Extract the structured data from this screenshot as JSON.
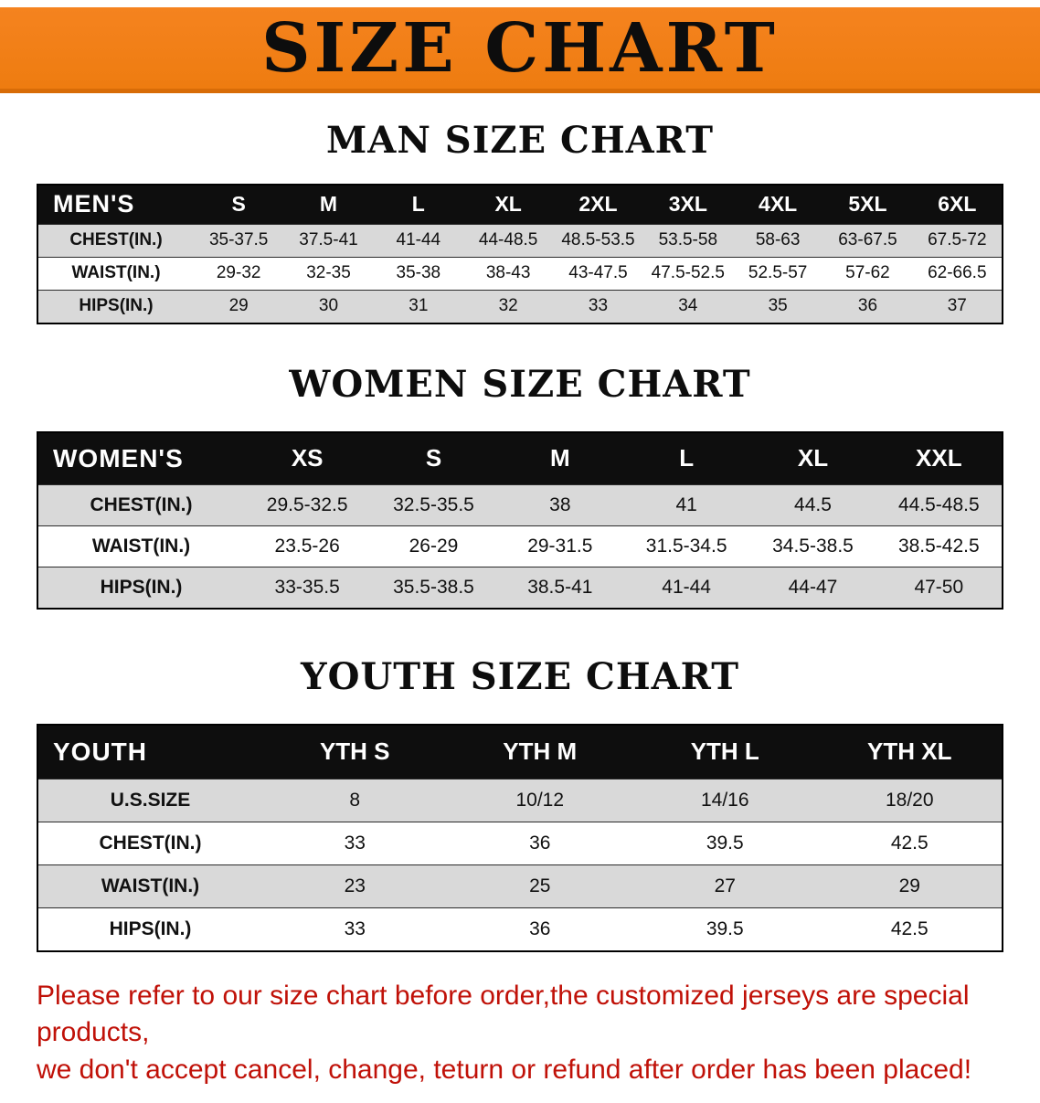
{
  "banner": {
    "title": "SIZE CHART"
  },
  "colors": {
    "banner_orange": "#f5831f",
    "heading_black": "#0d0d0d",
    "table_header_bg": "#0e0e0e",
    "table_header_text": "#ffffff",
    "row_stripe_gray": "#d9d9d9",
    "row_stripe_white": "#ffffff",
    "disclaimer_red": "#c01108"
  },
  "sections": [
    {
      "heading": "MAN SIZE CHART",
      "table": {
        "header": [
          "MEN'S",
          "S",
          "M",
          "L",
          "XL",
          "2XL",
          "3XL",
          "4XL",
          "5XL",
          "6XL"
        ],
        "rows": [
          [
            "CHEST(IN.)",
            "35-37.5",
            "37.5-41",
            "41-44",
            "44-48.5",
            "48.5-53.5",
            "53.5-58",
            "58-63",
            "63-67.5",
            "67.5-72"
          ],
          [
            "WAIST(IN.)",
            "29-32",
            "32-35",
            "35-38",
            "38-43",
            "43-47.5",
            "47.5-52.5",
            "52.5-57",
            "57-62",
            "62-66.5"
          ],
          [
            "HIPS(IN.)",
            "29",
            "30",
            "31",
            "32",
            "33",
            "34",
            "35",
            "36",
            "37"
          ]
        ]
      }
    },
    {
      "heading": "WOMEN SIZE CHART",
      "table": {
        "header": [
          "WOMEN'S",
          "XS",
          "S",
          "M",
          "L",
          "XL",
          "XXL"
        ],
        "rows": [
          [
            "CHEST(IN.)",
            "29.5-32.5",
            "32.5-35.5",
            "38",
            "41",
            "44.5",
            "44.5-48.5"
          ],
          [
            "WAIST(IN.)",
            "23.5-26",
            "26-29",
            "29-31.5",
            "31.5-34.5",
            "34.5-38.5",
            "38.5-42.5"
          ],
          [
            "HIPS(IN.)",
            "33-35.5",
            "35.5-38.5",
            "38.5-41",
            "41-44",
            "44-47",
            "47-50"
          ]
        ]
      }
    },
    {
      "heading": "YOUTH SIZE CHART",
      "table": {
        "header": [
          "YOUTH",
          "YTH S",
          "YTH M",
          "YTH L",
          "YTH XL"
        ],
        "rows": [
          [
            "U.S.SIZE",
            "8",
            "10/12",
            "14/16",
            "18/20"
          ],
          [
            "CHEST(IN.)",
            "33",
            "36",
            "39.5",
            "42.5"
          ],
          [
            "WAIST(IN.)",
            "23",
            "25",
            "27",
            "29"
          ],
          [
            "HIPS(IN.)",
            "33",
            "36",
            "39.5",
            "42.5"
          ]
        ]
      }
    }
  ],
  "disclaimer": {
    "line1": "Please refer to our size chart before order,the customized jerseys are special products,",
    "line2": "we don't accept cancel, change, teturn or refund after order has been placed!"
  }
}
